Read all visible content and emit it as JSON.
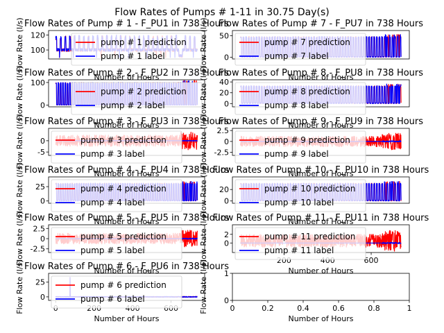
{
  "suptitle": "Flow Rates of Pumps # 1-11 in 30.75 Day(s)",
  "colors": {
    "prediction": "#ff0000",
    "label": "#0000ff"
  },
  "chart_data": [
    {
      "type": "line",
      "title": "Flow Rates of Pump # 1 - F_PU1 in 738 Hours",
      "xlabel": "Number of Hours",
      "ylabel": "Flow Rate (l/s)",
      "xlim": [
        -37,
        775
      ],
      "ylim": [
        88,
        126
      ],
      "yticks": [
        100,
        120
      ],
      "xticks": [],
      "legend": "upper-right",
      "series": [
        {
          "name": "pump # 1 prediction",
          "color": "#ff0000",
          "pattern": "periodic",
          "base": 100,
          "peak": 119,
          "low": 90
        },
        {
          "name": "pump # 1 label",
          "color": "#0000ff",
          "pattern": "periodic",
          "base": 100,
          "peak": 120,
          "low": 90
        }
      ]
    },
    {
      "type": "line",
      "title": "Flow Rates of Pump # 7 - F_PU7 in 738 Hours",
      "xlabel": "Number of Hours",
      "ylabel": "Flow Rate (l/s)",
      "xlim": [
        -37,
        775
      ],
      "ylim": [
        -4,
        62
      ],
      "yticks": [
        0,
        50
      ],
      "xticks": [],
      "legend": "upper-left",
      "series": [
        {
          "name": "pump # 7 prediction",
          "color": "#ff0000",
          "pattern": "on-off",
          "high": 48,
          "low": 0
        },
        {
          "name": "pump # 7 label",
          "color": "#0000ff",
          "pattern": "on-off",
          "high": 48,
          "low": 0
        }
      ]
    },
    {
      "type": "line",
      "title": "Flow Rates of Pump # 2 - F_PU2 in 738 Hours",
      "xlabel": "Number of Hours",
      "ylabel": "Flow Rate (l/s)",
      "xlim": [
        -37,
        775
      ],
      "ylim": [
        -8,
        112
      ],
      "yticks": [
        0,
        100
      ],
      "xticks": [],
      "legend": "upper-right",
      "series": [
        {
          "name": "pump # 2 prediction",
          "color": "#ff0000",
          "pattern": "on-off",
          "high": 100,
          "low": 0
        },
        {
          "name": "pump # 2 label",
          "color": "#0000ff",
          "pattern": "on-off",
          "high": 100,
          "low": 0
        }
      ]
    },
    {
      "type": "line",
      "title": "Flow Rates of Pump # 8 - F_PU8 in 738 Hours",
      "xlabel": "Number of Hours",
      "ylabel": "Flow Rate (l/s)",
      "xlim": [
        -37,
        775
      ],
      "ylim": [
        -6,
        44
      ],
      "yticks": [
        0,
        20,
        40
      ],
      "xticks": [],
      "legend": "upper-left",
      "series": [
        {
          "name": "pump # 8 prediction",
          "color": "#ff0000",
          "pattern": "on-off",
          "high": 33,
          "low": 0
        },
        {
          "name": "pump # 8 label",
          "color": "#0000ff",
          "pattern": "on-off",
          "high": 33,
          "low": 0
        }
      ]
    },
    {
      "type": "line",
      "title": "Flow Rates of Pump # 3 - F_PU3 in 738 Hours",
      "xlabel": "Number of Hours",
      "ylabel": "Flow Rate (l/s)",
      "xlim": [
        -37,
        775
      ],
      "ylim": [
        -6.5,
        5.5
      ],
      "yticks": [
        -5,
        0
      ],
      "xticks": [],
      "legend": "upper-left",
      "series": [
        {
          "name": "pump # 3 prediction",
          "color": "#ff0000",
          "pattern": "noise",
          "center": 0,
          "amp": 2.5
        },
        {
          "name": "pump # 3 label",
          "color": "#0000ff",
          "pattern": "zero-tail",
          "value": 0
        }
      ]
    },
    {
      "type": "line",
      "title": "Flow Rates of Pump # 9 - F_PU9 in 738 Hours",
      "xlabel": "Number of Hours",
      "ylabel": "Flow Rate (l/s)",
      "xlim": [
        -37,
        775
      ],
      "ylim": [
        -3.2,
        3.0
      ],
      "yticks": [
        -2.5,
        0.0,
        2.5
      ],
      "xticks": [],
      "legend": "upper-left",
      "series": [
        {
          "name": "pump # 9 prediction",
          "color": "#ff0000",
          "pattern": "noise",
          "center": 0,
          "amp": 1.2
        },
        {
          "name": "pump # 9 label",
          "color": "#0000ff",
          "pattern": "zero-tail",
          "value": 0
        }
      ]
    },
    {
      "type": "line",
      "title": "Flow Rates of Pump # 4 - F_PU4 in 738 Hours",
      "xlabel": "Number of Hours",
      "ylabel": "Flow Rate (l/s)",
      "xlim": [
        -37,
        775
      ],
      "ylim": [
        -4,
        42
      ],
      "yticks": [
        0,
        25
      ],
      "xticks": [],
      "legend": "upper-left",
      "series": [
        {
          "name": "pump # 4 prediction",
          "color": "#ff0000",
          "pattern": "on-off",
          "high": 31,
          "low": 0
        },
        {
          "name": "pump # 4 label",
          "color": "#0000ff",
          "pattern": "on-off",
          "high": 31,
          "low": 0
        }
      ]
    },
    {
      "type": "line",
      "title": "Flow Rates of Pump # 10 - F_PU10 in 738 Hours",
      "xlabel": "Number of Hours",
      "ylabel": "Flow Rate (l/s)",
      "xlim": [
        -37,
        775
      ],
      "ylim": [
        -4,
        42
      ],
      "yticks": [
        0,
        20
      ],
      "xticks": [],
      "legend": "upper-left",
      "series": [
        {
          "name": "pump # 10 prediction",
          "color": "#ff0000",
          "pattern": "on-off",
          "high": 31,
          "low": 0
        },
        {
          "name": "pump # 10 label",
          "color": "#0000ff",
          "pattern": "on-off",
          "high": 31,
          "low": 0
        }
      ]
    },
    {
      "type": "line",
      "title": "Flow Rates of Pump # 5 - F_PU5 in 738 Hours",
      "xlabel": "Number of Hours",
      "ylabel": "Flow Rate (l/s)",
      "xlim": [
        -37,
        775
      ],
      "ylim": [
        -3.4,
        3.4
      ],
      "yticks": [
        -2.5,
        0.0,
        2.5
      ],
      "xticks": [],
      "legend": "upper-left",
      "series": [
        {
          "name": "pump # 5 prediction",
          "color": "#ff0000",
          "pattern": "noise",
          "center": 0,
          "amp": 1.3
        },
        {
          "name": "pump # 5 label",
          "color": "#0000ff",
          "pattern": "zero-tail",
          "value": 0
        }
      ]
    },
    {
      "type": "line",
      "title": "Flow Rates of Pump # 11 - F_PU11 in 738 Hours",
      "xlabel": "Number of Hours",
      "ylabel": "Flow Rate (l/s)",
      "xlim": [
        -37,
        775
      ],
      "ylim": [
        -2.2,
        4.2
      ],
      "yticks": [
        0,
        2
      ],
      "xticks": [
        200,
        400,
        600
      ],
      "legend": "upper-left",
      "series": [
        {
          "name": "pump # 11 prediction",
          "color": "#ff0000",
          "pattern": "noise",
          "center": 0.5,
          "amp": 1.5
        },
        {
          "name": "pump # 11 label",
          "color": "#0000ff",
          "pattern": "zero-tail",
          "value": 0
        }
      ]
    },
    {
      "type": "line",
      "title": "Flow Rates of Pump # 6 - F_PU6 in 738 Hours",
      "xlabel": "Number of Hours",
      "ylabel": "Flow Rate (l/s)",
      "xlim": [
        -37,
        775
      ],
      "ylim": [
        -6,
        40
      ],
      "yticks": [
        0,
        25
      ],
      "xticks": [
        0,
        200,
        400,
        600
      ],
      "legend": "upper-left",
      "series": [
        {
          "name": "pump # 6 prediction",
          "color": "#ff0000",
          "pattern": "flat-spike",
          "base": 0,
          "spike": 33
        },
        {
          "name": "pump # 6 label",
          "color": "#0000ff",
          "pattern": "flat-spike",
          "base": 0,
          "spike": 33
        }
      ]
    },
    {
      "type": "empty",
      "title": "",
      "xlabel": "Number of Hours",
      "ylabel": "Flow Rate (l/s)",
      "xlim": [
        0,
        1
      ],
      "ylim": [
        0,
        1
      ],
      "yticks": [
        0,
        1
      ],
      "xticks": [
        0.0,
        0.2,
        0.4,
        0.6,
        0.8,
        1.0
      ],
      "series": []
    }
  ]
}
